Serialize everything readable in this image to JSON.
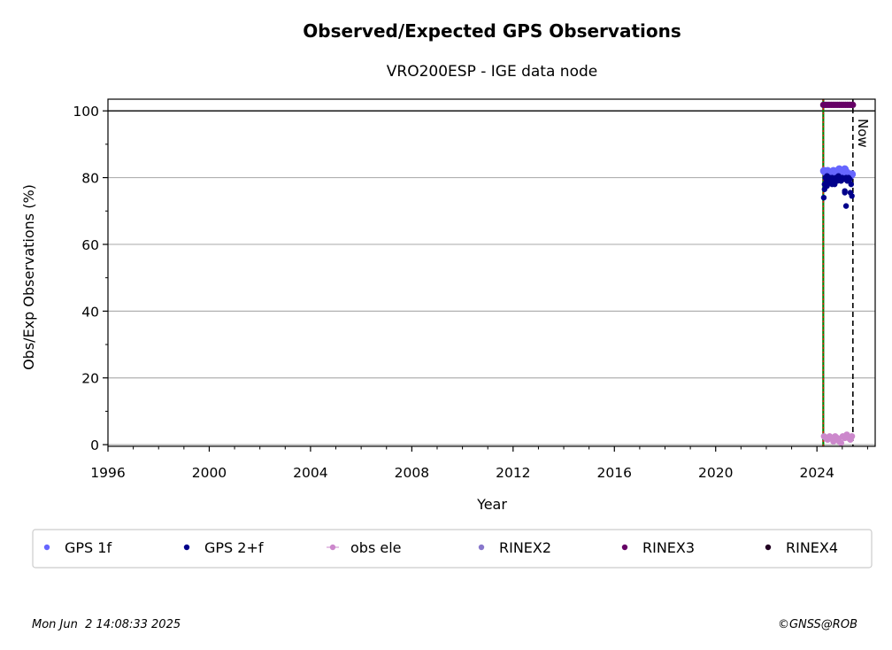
{
  "chart_data": {
    "type": "scatter",
    "title": "Observed/Expected GPS Observations",
    "subtitle": "VRO200ESP - IGE data node",
    "xlabel": "Year",
    "ylabel": "Obs/Exp Observations (%)",
    "xlim": [
      1996,
      2026.3
    ],
    "ylim": [
      -0.5,
      103.5
    ],
    "x_ticks": [
      1996,
      2000,
      2004,
      2008,
      2012,
      2016,
      2020,
      2024
    ],
    "x_tick_labels": [
      "1996",
      "2000",
      "2004",
      "2008",
      "2012",
      "2016",
      "2020",
      "2024"
    ],
    "y_ticks": [
      0,
      20,
      40,
      60,
      80,
      100
    ],
    "y_tick_labels": [
      "0",
      "20",
      "40",
      "60",
      "80",
      "100"
    ],
    "grid": "horizontal",
    "reference_line_y": 100,
    "vertical_markers": [
      {
        "x": 2024.25,
        "style": "green-red dotted",
        "color": "#008000"
      },
      {
        "x": 2025.42,
        "style": "dashed",
        "color": "#000000",
        "label": "Now"
      }
    ],
    "legend_position": "bottom",
    "series": [
      {
        "name": "GPS 1f",
        "color": "#6666ff",
        "x": [
          2024.28,
          2024.35,
          2024.42,
          2024.5,
          2024.58,
          2024.65,
          2024.72,
          2024.8,
          2024.88,
          2024.95,
          2025.02,
          2025.1,
          2025.18,
          2025.25,
          2025.32,
          2025.38
        ],
        "y": [
          82,
          81.5,
          82,
          81,
          81.5,
          82,
          81,
          81.5,
          82.5,
          82,
          81,
          82.5,
          81.5,
          81,
          80.5,
          81
        ]
      },
      {
        "name": "GPS 2+f",
        "color": "#00008b",
        "x": [
          2024.27,
          2024.3,
          2024.33,
          2024.37,
          2024.4,
          2024.45,
          2024.5,
          2024.55,
          2024.6,
          2024.65,
          2024.7,
          2024.75,
          2024.8,
          2024.85,
          2024.9,
          2024.95,
          2025.0,
          2025.05,
          2025.1,
          2025.15,
          2025.2,
          2025.25,
          2025.3,
          2025.35,
          2025.38,
          2024.3,
          2024.4,
          2024.6,
          2025.1,
          2025.15,
          2025.32
        ],
        "y": [
          74,
          78,
          80,
          79,
          80.5,
          79,
          80,
          78.5,
          80,
          79.5,
          78,
          80,
          79,
          80.5,
          80,
          79,
          80,
          79.5,
          76,
          80,
          79,
          80,
          79.5,
          78,
          74.5,
          76.5,
          77.5,
          78,
          75.5,
          71.5,
          75.5
        ]
      },
      {
        "name": "obs ele",
        "color": "#cc88cc",
        "x": [
          2024.28,
          2024.35,
          2024.42,
          2024.5,
          2024.58,
          2024.65,
          2024.72,
          2024.8,
          2024.88,
          2024.95,
          2025.02,
          2025.1,
          2025.18,
          2025.25,
          2025.32,
          2025.38
        ],
        "y": [
          2.5,
          2,
          1.5,
          2.5,
          2,
          1,
          2.5,
          2,
          1,
          0.5,
          2.5,
          2,
          3,
          2,
          1.5,
          2.5
        ]
      },
      {
        "name": "RINEX2",
        "color": "#8877cc",
        "x": [],
        "y": []
      },
      {
        "name": "RINEX3",
        "color": "#660066",
        "x": [
          2024.25,
          2024.32,
          2024.4,
          2024.48,
          2024.56,
          2024.64,
          2024.72,
          2024.8,
          2024.88,
          2024.96,
          2025.04,
          2025.12,
          2025.2,
          2025.28,
          2025.36,
          2025.42
        ],
        "y": [
          101.8,
          101.8,
          101.8,
          101.8,
          101.8,
          101.8,
          101.8,
          101.8,
          101.8,
          101.8,
          101.8,
          101.8,
          101.8,
          101.8,
          101.8,
          101.8
        ]
      },
      {
        "name": "RINEX4",
        "color": "#220022",
        "x": [],
        "y": []
      }
    ]
  },
  "footer": {
    "timestamp": "Mon Jun  2 14:08:33 2025",
    "credit": "©GNSS@ROB"
  }
}
